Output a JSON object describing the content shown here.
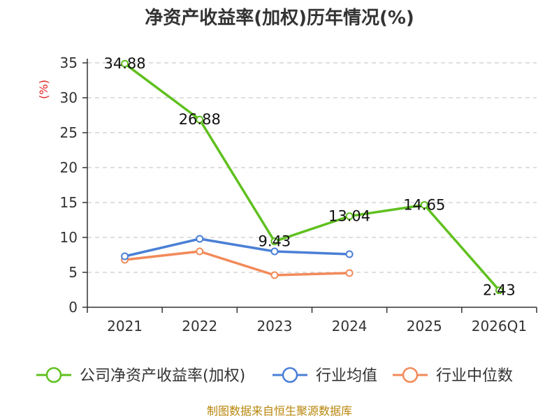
{
  "chart_data": {
    "type": "line",
    "title": "净资产收益率(加权)历年情况(%)",
    "ylabel": "(%)",
    "xlabel": "",
    "categories": [
      "2021",
      "2022",
      "2023",
      "2024",
      "2025",
      "2026Q1"
    ],
    "ylim": [
      0,
      35
    ],
    "yticks": [
      0,
      5,
      10,
      15,
      20,
      25,
      30,
      35
    ],
    "grid": true,
    "legend_position": "bottom",
    "series": [
      {
        "name": "公司净资产收益率(加权)",
        "color": "#5fc01e",
        "values": [
          34.88,
          26.88,
          9.43,
          13.04,
          14.65,
          2.43
        ],
        "labels": [
          "34.88",
          "26.88",
          "9.43",
          "13.04",
          "14.65",
          "2.43"
        ]
      },
      {
        "name": "行业均值",
        "color": "#4a7fd6",
        "values": [
          7.3,
          9.8,
          8.0,
          7.6,
          null,
          null
        ]
      },
      {
        "name": "行业中位数",
        "color": "#f28a5a",
        "values": [
          6.8,
          8.0,
          4.6,
          4.9,
          null,
          null
        ]
      }
    ]
  },
  "footer": {
    "source": "制图数据来自恒生聚源数据库"
  }
}
